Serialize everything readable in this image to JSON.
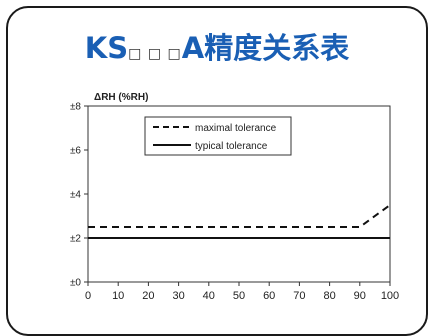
{
  "title": {
    "prefix": "KS",
    "boxes": "□ □ □",
    "suffix": "A精度关系表",
    "color": "#1a5fb4"
  },
  "chart_data": {
    "type": "line",
    "title": "",
    "ylabel": "ΔRH (%RH)",
    "xlabel": "",
    "xlim": [
      0,
      100
    ],
    "ylim": [
      0,
      8
    ],
    "x_ticks": [
      "0",
      "10",
      "20",
      "30",
      "40",
      "50",
      "60",
      "70",
      "80",
      "90",
      "100"
    ],
    "y_ticks": [
      {
        "value": 0,
        "label": "±0"
      },
      {
        "value": 2,
        "label": "±2"
      },
      {
        "value": 4,
        "label": "±4"
      },
      {
        "value": 6,
        "label": "±6"
      },
      {
        "value": 8,
        "label": "±8"
      }
    ],
    "grid": false,
    "legend_position": "top-center",
    "series": [
      {
        "name": "maximal tolerance",
        "style": "dashed",
        "x": [
          0,
          90,
          100
        ],
        "y": [
          2.5,
          2.5,
          3.5
        ]
      },
      {
        "name": "typical tolerance",
        "style": "solid",
        "x": [
          0,
          100
        ],
        "y": [
          2,
          2
        ]
      }
    ]
  }
}
